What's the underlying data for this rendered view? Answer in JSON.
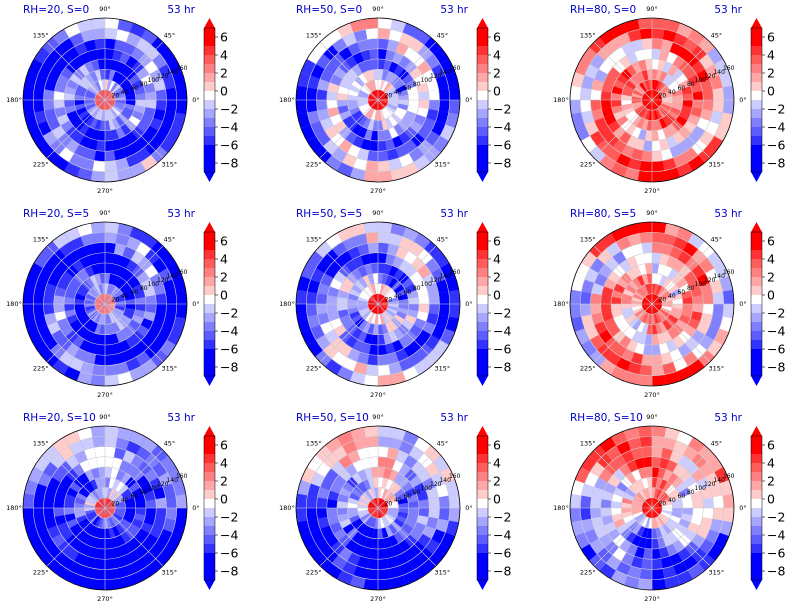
{
  "figure": {
    "time_label": "53 hr",
    "angle_labels": [
      "0°",
      "45°",
      "90°",
      "135°",
      "180°",
      "225°",
      "270°",
      "315°"
    ],
    "radial_tick_labels": [
      "20",
      "40",
      "60",
      "80",
      "100",
      "120",
      "140",
      "160"
    ]
  },
  "colors": {
    "title_color": "#0000cc",
    "colormap": [
      "#0000ff",
      "#3333ff",
      "#5c5cff",
      "#8080ff",
      "#a6a6ff",
      "#ccccff",
      "#ffffff",
      "#ffcccc",
      "#ffa6a6",
      "#ff8080",
      "#ff5c5c",
      "#ff3333",
      "#ff0000"
    ]
  },
  "colorbar": {
    "ticks": [
      "6",
      "4",
      "2",
      "0",
      "−2",
      "−4",
      "−6",
      "−8"
    ],
    "levels": [
      -8,
      -7,
      -6,
      -5,
      -4,
      -3,
      -2,
      -1,
      0,
      1,
      2,
      3,
      4,
      5,
      6,
      7
    ]
  },
  "chart_data": [
    {
      "type": "polar-contour",
      "title": "RH=20, S=0",
      "time": "53 hr",
      "color_scale": [
        -8,
        7
      ],
      "mean_tendency": -4.5,
      "core_value": 5,
      "pattern": "spiral"
    },
    {
      "type": "polar-contour",
      "title": "RH=50, S=0",
      "time": "53 hr",
      "color_scale": [
        -8,
        7
      ],
      "mean_tendency": -2.5,
      "core_value": 7,
      "pattern": "spiral"
    },
    {
      "type": "polar-contour",
      "title": "RH=80, S=0",
      "time": "53 hr",
      "color_scale": [
        -8,
        7
      ],
      "mean_tendency": 2.5,
      "core_value": 7,
      "pattern": "spiral"
    },
    {
      "type": "polar-contour",
      "title": "RH=20, S=5",
      "time": "53 hr",
      "color_scale": [
        -8,
        7
      ],
      "mean_tendency": -5,
      "core_value": 4,
      "pattern": "spiral"
    },
    {
      "type": "polar-contour",
      "title": "RH=50, S=5",
      "time": "53 hr",
      "color_scale": [
        -8,
        7
      ],
      "mean_tendency": -3,
      "core_value": 7,
      "pattern": "spiral"
    },
    {
      "type": "polar-contour",
      "title": "RH=80, S=5",
      "time": "53 hr",
      "color_scale": [
        -8,
        7
      ],
      "mean_tendency": 1.5,
      "core_value": 7,
      "pattern": "spiral"
    },
    {
      "type": "polar-contour",
      "title": "RH=20, S=10",
      "time": "53 hr",
      "color_scale": [
        -8,
        7
      ],
      "mean_tendency": -5.5,
      "core_value": 6,
      "pattern": "asymmetric"
    },
    {
      "type": "polar-contour",
      "title": "RH=50, S=10",
      "time": "53 hr",
      "color_scale": [
        -8,
        7
      ],
      "mean_tendency": -3.5,
      "core_value": 7,
      "pattern": "asymmetric"
    },
    {
      "type": "polar-contour",
      "title": "RH=80, S=10",
      "time": "53 hr",
      "color_scale": [
        -8,
        7
      ],
      "mean_tendency": -0.5,
      "core_value": 7,
      "pattern": "asymmetric"
    }
  ]
}
